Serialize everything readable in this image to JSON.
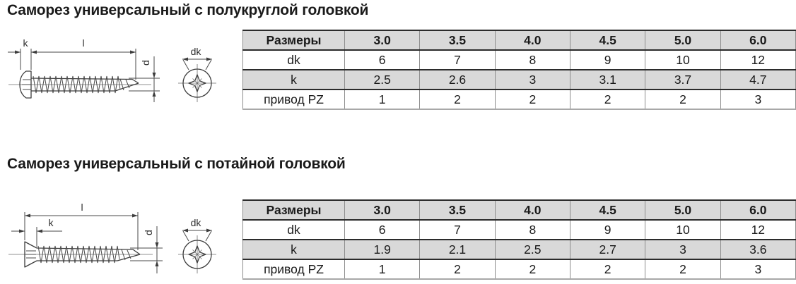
{
  "colors": {
    "header_bg": "#d9d9d9",
    "alt_row_bg": "#d9d9d9",
    "text": "#1a1a1a",
    "border_dark": "#2b2b2b",
    "border_light": "#8c8c8c"
  },
  "sections": [
    {
      "title": "Саморез универсальный с полукруглой головкой",
      "drawing": {
        "dim_k": "k",
        "dim_l": "l",
        "dim_d": "d",
        "dim_dk": "dk"
      },
      "table": {
        "header": [
          "Размеры",
          "3.0",
          "3.5",
          "4.0",
          "4.5",
          "5.0",
          "6.0"
        ],
        "rows": [
          {
            "label": "dk",
            "values": [
              "6",
              "7",
              "8",
              "9",
              "10",
              "12"
            ]
          },
          {
            "label": "k",
            "values": [
              "2.5",
              "2.6",
              "3",
              "3.1",
              "3.7",
              "4.7"
            ]
          },
          {
            "label": "привод PZ",
            "values": [
              "1",
              "2",
              "2",
              "2",
              "2",
              "3"
            ]
          }
        ]
      }
    },
    {
      "title": "Саморез универсальный с потайной головкой",
      "drawing": {
        "dim_k": "k",
        "dim_l": "l",
        "dim_d": "d",
        "dim_dk": "dk"
      },
      "table": {
        "header": [
          "Размеры",
          "3.0",
          "3.5",
          "4.0",
          "4.5",
          "5.0",
          "6.0"
        ],
        "rows": [
          {
            "label": "dk",
            "values": [
              "6",
              "7",
              "8",
              "9",
              "10",
              "12"
            ]
          },
          {
            "label": "k",
            "values": [
              "1.9",
              "2.1",
              "2.5",
              "2.7",
              "3",
              "3.6"
            ]
          },
          {
            "label": "привод PZ",
            "values": [
              "1",
              "2",
              "2",
              "2",
              "2",
              "3"
            ]
          }
        ]
      }
    }
  ]
}
